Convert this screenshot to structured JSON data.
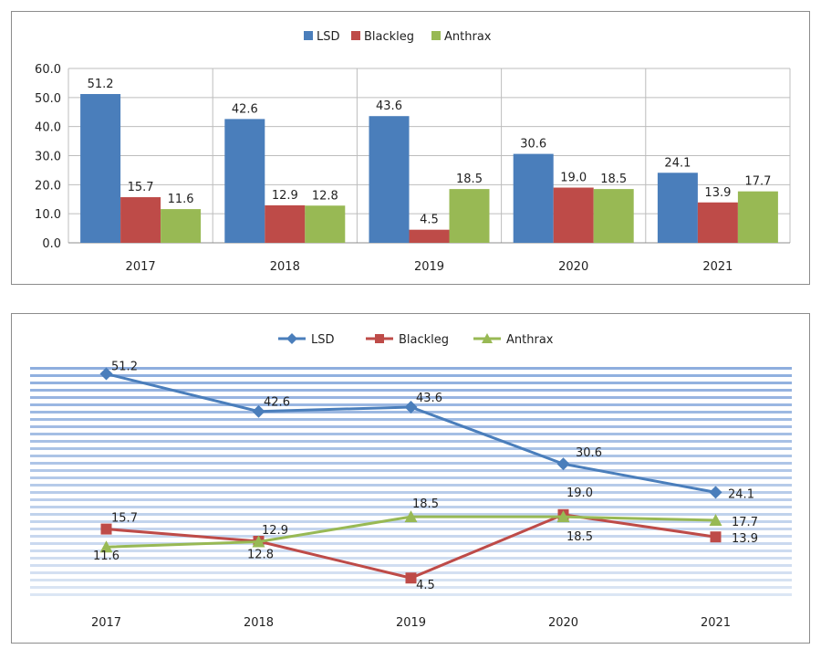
{
  "chart_data": [
    {
      "type": "bar",
      "categories": [
        "2017",
        "2018",
        "2019",
        "2020",
        "2021"
      ],
      "series": [
        {
          "name": "LSD",
          "color": "#4a7ebb",
          "values": [
            51.2,
            42.6,
            43.6,
            30.6,
            24.1
          ]
        },
        {
          "name": "Blackleg",
          "color": "#be4b48",
          "values": [
            15.7,
            12.9,
            4.5,
            19.0,
            13.9
          ]
        },
        {
          "name": "Anthrax",
          "color": "#98b954",
          "values": [
            11.6,
            12.8,
            18.5,
            18.5,
            17.7
          ]
        }
      ],
      "yticks": [
        "0.0",
        "10.0",
        "20.0",
        "30.0",
        "40.0",
        "50.0",
        "60.0"
      ],
      "ylim": [
        0,
        60
      ],
      "grid": true,
      "legend": "top-center"
    },
    {
      "type": "line",
      "categories": [
        "2017",
        "2018",
        "2019",
        "2020",
        "2021"
      ],
      "series": [
        {
          "name": "LSD",
          "color": "#4a7ebb",
          "marker": "diamond",
          "values": [
            51.2,
            42.6,
            43.6,
            30.6,
            24.1
          ]
        },
        {
          "name": "Blackleg",
          "color": "#be4b48",
          "marker": "square",
          "values": [
            15.7,
            12.9,
            4.5,
            19.0,
            13.9
          ]
        },
        {
          "name": "Anthrax",
          "color": "#98b954",
          "marker": "triangle",
          "values": [
            11.6,
            12.8,
            18.5,
            18.5,
            17.7
          ]
        }
      ],
      "ylim": [
        0,
        60
      ],
      "background": "striped-blue",
      "legend": "top-center"
    }
  ]
}
